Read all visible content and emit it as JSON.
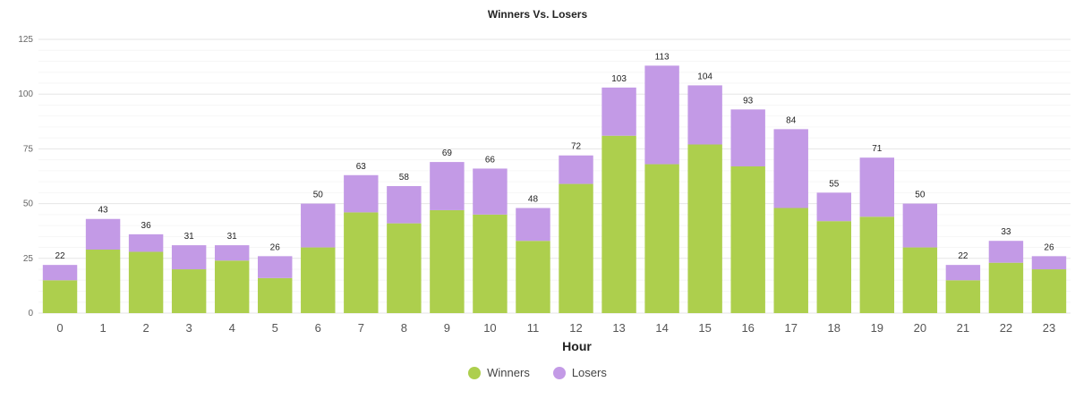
{
  "chart_data": {
    "type": "bar",
    "stacked": true,
    "title": "Winners Vs. Losers",
    "xlabel": "Hour",
    "ylabel": "",
    "ylim": [
      0,
      125
    ],
    "yticks": [
      0,
      25,
      50,
      75,
      100,
      125
    ],
    "grid": true,
    "legend_position": "bottom",
    "categories": [
      "0",
      "1",
      "2",
      "3",
      "4",
      "5",
      "6",
      "7",
      "8",
      "9",
      "10",
      "11",
      "12",
      "13",
      "14",
      "15",
      "16",
      "17",
      "18",
      "19",
      "20",
      "21",
      "22",
      "23"
    ],
    "series": [
      {
        "name": "Winners",
        "color": "#adcf4d",
        "values": [
          15,
          29,
          28,
          20,
          24,
          16,
          30,
          46,
          41,
          47,
          45,
          33,
          59,
          81,
          68,
          77,
          67,
          48,
          42,
          44,
          30,
          15,
          23,
          20
        ]
      },
      {
        "name": "Losers",
        "color": "#c39ae6",
        "values": [
          7,
          14,
          8,
          11,
          7,
          10,
          20,
          17,
          17,
          22,
          21,
          15,
          13,
          22,
          45,
          27,
          26,
          36,
          13,
          27,
          20,
          7,
          10,
          6
        ]
      }
    ],
    "totals": [
      22,
      43,
      36,
      31,
      31,
      26,
      50,
      63,
      58,
      69,
      66,
      48,
      72,
      103,
      113,
      104,
      93,
      84,
      55,
      71,
      50,
      22,
      33,
      26
    ]
  }
}
